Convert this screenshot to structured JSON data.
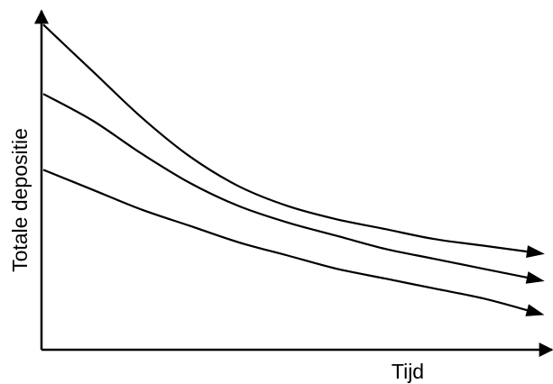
{
  "chart_data": {
    "type": "line",
    "title": "",
    "xlabel": "Tijd",
    "ylabel": "Totale depositie",
    "x_ticks": [],
    "y_ticks": [],
    "grid": false,
    "legend": "none",
    "x": [
      0,
      1,
      2,
      3,
      4,
      5,
      6,
      7,
      8,
      9,
      10
    ],
    "xlim": [
      0,
      10
    ],
    "ylim": [
      0,
      10
    ],
    "series": [
      {
        "values": [
          9.8,
          8.4,
          7.0,
          5.8,
          4.9,
          4.3,
          3.9,
          3.6,
          3.3,
          3.1,
          2.9
        ]
      },
      {
        "values": [
          7.7,
          6.9,
          5.9,
          5.0,
          4.3,
          3.8,
          3.4,
          3.0,
          2.7,
          2.4,
          2.1
        ]
      },
      {
        "values": [
          5.4,
          4.8,
          4.2,
          3.7,
          3.2,
          2.8,
          2.4,
          2.1,
          1.8,
          1.5,
          1.1
        ]
      }
    ],
    "line_color": "#000000"
  }
}
